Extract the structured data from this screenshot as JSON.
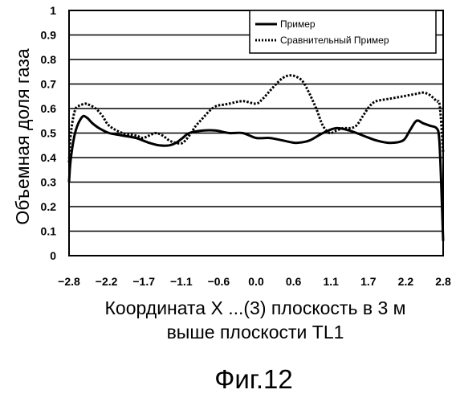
{
  "chart_data": {
    "type": "line",
    "ylabel": "Объемная доля газа",
    "xlabel_lines": [
      "Координата X ...(3) плоскость в 3 м",
      "выше плоскости TL1"
    ],
    "x_ticks": [
      "−2.8",
      "−2.2",
      "−1.7",
      "−1.1",
      "−0.6",
      "0.0",
      "0.6",
      "1.1",
      "1.7",
      "2.2",
      "2.8"
    ],
    "y_ticks": [
      "0",
      "0.1",
      "0.2",
      "0.3",
      "0.4",
      "0.5",
      "0.6",
      "0.7",
      "0.8",
      "0.9",
      "1"
    ],
    "xlim": [
      -2.8,
      2.8
    ],
    "ylim": [
      0,
      1
    ],
    "grid": "horizontal",
    "legend_position": "top-right",
    "series": [
      {
        "name": "Пример",
        "style": "solid",
        "color": "#000000",
        "x": [
          -2.8,
          -2.78,
          -2.74,
          -2.7,
          -2.66,
          -2.62,
          -2.58,
          -2.52,
          -2.45,
          -2.35,
          -2.2,
          -2.0,
          -1.8,
          -1.6,
          -1.45,
          -1.3,
          -1.2,
          -1.1,
          -1.0,
          -0.8,
          -0.6,
          -0.4,
          -0.2,
          0.0,
          0.2,
          0.4,
          0.6,
          0.8,
          1.0,
          1.2,
          1.4,
          1.6,
          1.8,
          2.0,
          2.2,
          2.3,
          2.4,
          2.5,
          2.6,
          2.7,
          2.74,
          2.77,
          2.8
        ],
        "y": [
          0.3,
          0.38,
          0.46,
          0.51,
          0.54,
          0.56,
          0.57,
          0.56,
          0.54,
          0.52,
          0.5,
          0.49,
          0.48,
          0.46,
          0.45,
          0.45,
          0.46,
          0.48,
          0.5,
          0.51,
          0.51,
          0.5,
          0.5,
          0.48,
          0.48,
          0.47,
          0.46,
          0.47,
          0.5,
          0.52,
          0.51,
          0.49,
          0.47,
          0.46,
          0.47,
          0.51,
          0.55,
          0.54,
          0.53,
          0.52,
          0.48,
          0.3,
          0.06
        ]
      },
      {
        "name": "Сравнительный Пример",
        "style": "dotted",
        "color": "#000000",
        "x": [
          -2.8,
          -2.78,
          -2.74,
          -2.7,
          -2.66,
          -2.62,
          -2.56,
          -2.5,
          -2.4,
          -2.3,
          -2.2,
          -2.0,
          -1.8,
          -1.7,
          -1.6,
          -1.5,
          -1.4,
          -1.3,
          -1.2,
          -1.1,
          -1.0,
          -0.9,
          -0.8,
          -0.7,
          -0.6,
          -0.5,
          -0.4,
          -0.2,
          0.0,
          0.1,
          0.2,
          0.3,
          0.4,
          0.5,
          0.6,
          0.7,
          0.8,
          0.9,
          1.0,
          1.1,
          1.2,
          1.3,
          1.4,
          1.5,
          1.6,
          1.7,
          1.8,
          2.0,
          2.2,
          2.4,
          2.5,
          2.6,
          2.7,
          2.75,
          2.8
        ],
        "y": [
          0.38,
          0.48,
          0.56,
          0.6,
          0.61,
          0.615,
          0.62,
          0.615,
          0.6,
          0.57,
          0.53,
          0.5,
          0.49,
          0.48,
          0.49,
          0.5,
          0.49,
          0.47,
          0.46,
          0.46,
          0.49,
          0.53,
          0.56,
          0.59,
          0.61,
          0.615,
          0.62,
          0.63,
          0.62,
          0.64,
          0.67,
          0.7,
          0.725,
          0.735,
          0.73,
          0.71,
          0.66,
          0.6,
          0.53,
          0.5,
          0.51,
          0.52,
          0.52,
          0.53,
          0.57,
          0.61,
          0.63,
          0.64,
          0.65,
          0.66,
          0.665,
          0.655,
          0.63,
          0.61,
          0.42
        ]
      }
    ]
  },
  "figure_label": "Фиг.12"
}
